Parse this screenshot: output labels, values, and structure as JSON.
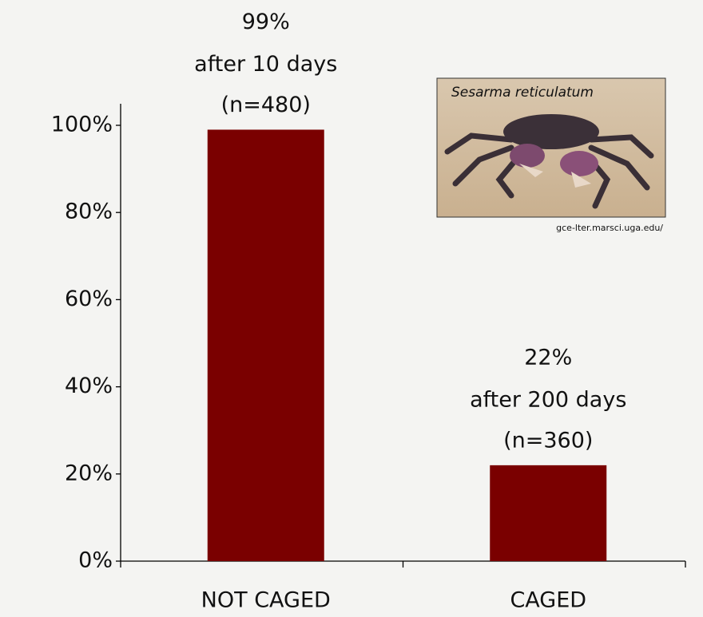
{
  "chart_data": {
    "type": "bar",
    "categories": [
      "NOT CAGED",
      "CAGED"
    ],
    "values": [
      99,
      22
    ],
    "value_labels": [
      "99%",
      "22%"
    ],
    "annotations": [
      [
        "after 10 days",
        "(n=480)"
      ],
      [
        "after 200 days",
        "(n=360)"
      ]
    ],
    "color": "#7a0000",
    "ylim": [
      0,
      100
    ],
    "yticks": [
      {
        "value": 0,
        "label": "0%"
      },
      {
        "value": 20,
        "label": "20%"
      },
      {
        "value": 40,
        "label": "40%"
      },
      {
        "value": 60,
        "label": "60%"
      },
      {
        "value": 80,
        "label": "80%"
      },
      {
        "value": 100,
        "label": "100%"
      }
    ],
    "grid": false,
    "photo_caption": "Sesarma reticulatum",
    "photo_credit": "gce-lter.marsci.uga.edu/"
  }
}
